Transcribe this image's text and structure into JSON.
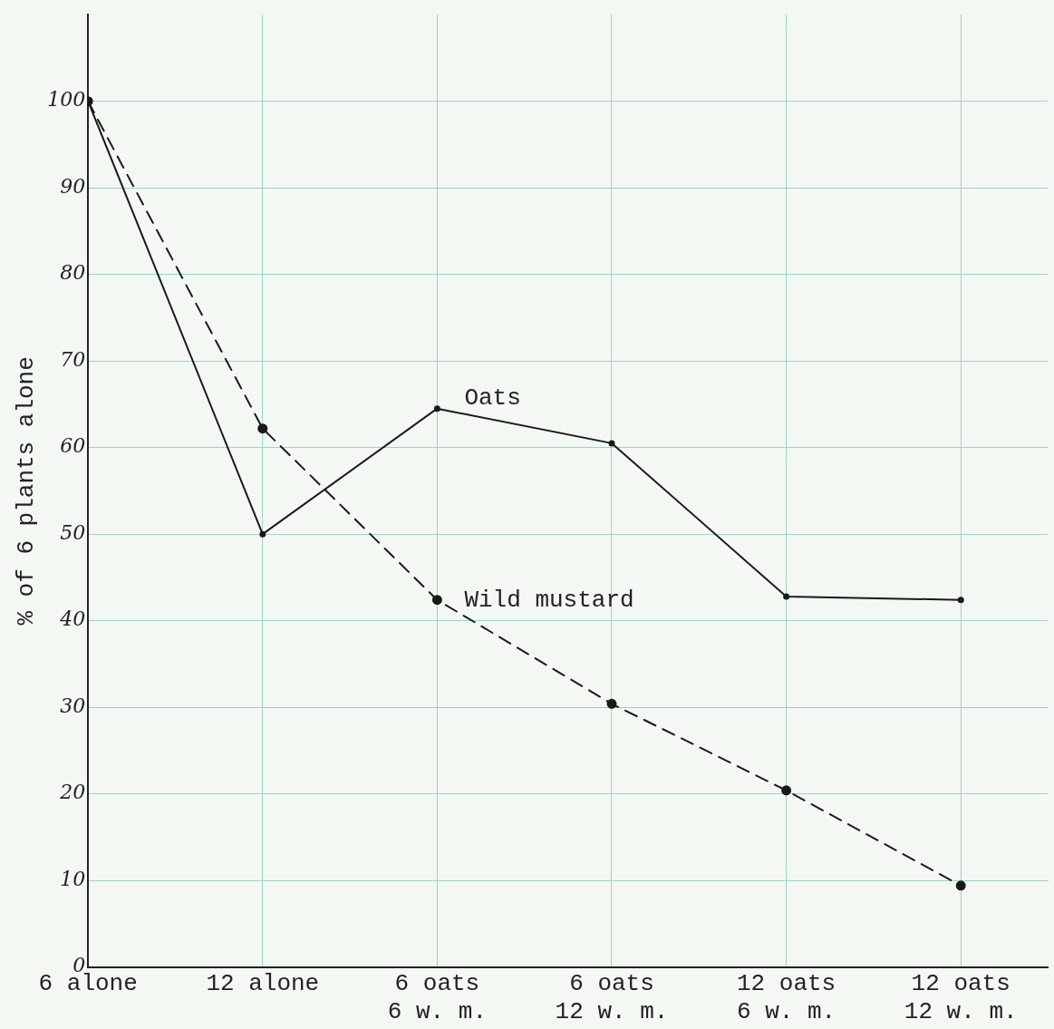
{
  "chart_data": {
    "type": "line",
    "ylabel": "% of 6 plants alone",
    "categories": [
      "6 alone",
      "12 alone",
      "6 oats\n6 w. m.",
      "6 oats\n12 w. m.",
      "12 oats\n6 w. m.",
      "12 oats\n12 w. m."
    ],
    "series": [
      {
        "name": "Oats",
        "color": "#1a1a1a",
        "line_style": "solid",
        "values": [
          100,
          50,
          64.5,
          60.5,
          42.8,
          42.4
        ]
      },
      {
        "name": "Wild mustard",
        "color": "#1a1a1a",
        "line_style": "dashed",
        "values": [
          100,
          62.2,
          42.4,
          30.4,
          20.4,
          9.4
        ]
      }
    ],
    "ylim": [
      0,
      110
    ],
    "yticks": [
      0,
      10,
      20,
      30,
      40,
      50,
      60,
      70,
      80,
      90,
      100
    ],
    "grid": true,
    "marker": "circle",
    "legend": false
  }
}
